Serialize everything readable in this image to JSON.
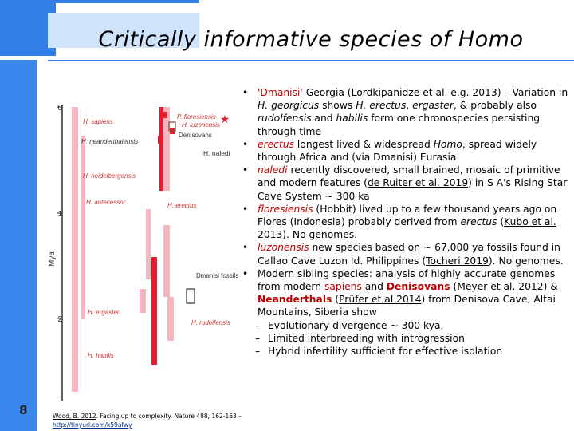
{
  "title": "Critically informative species of Homo",
  "slide_number": "8",
  "citation": {
    "author_year": "Wood, B. 2012",
    "rest": ". Facing up to complexity. Nature 488, 162-163 – ",
    "link": "http://tinyurl.com/k59afwy"
  },
  "chart": {
    "axis_label": "Mya",
    "ticks": [
      "0",
      "1",
      "2"
    ],
    "species": [
      "H. sapiens",
      "H. neanderthalensis",
      "H. heidelbergensis",
      "H. antecessor",
      "H. naledi",
      "H. erectus",
      "Dmanisi fossils",
      "H. ergaster",
      "H. habilis",
      "H. rudolfensis",
      "P. floresiensis",
      "H. luzonensis",
      "Denisovans"
    ],
    "colors": {
      "pink": "#f4b6bf",
      "red": "#e02030",
      "axis": "#333333",
      "brown": "#7a4a3a"
    }
  },
  "bullets": [
    {
      "parts": [
        {
          "t": "'Dmanisi' ",
          "c": "red"
        },
        {
          "t": "Georgia ("
        },
        {
          "t": "Lordkipanidze et al. e.g. 2013",
          "c": "u"
        },
        {
          "t": ") – Variation in "
        },
        {
          "t": "H. georgicus",
          "c": "it"
        },
        {
          "t": " shows "
        },
        {
          "t": "H. erectus",
          "c": "it"
        },
        {
          "t": ", "
        },
        {
          "t": "ergaster",
          "c": "it"
        },
        {
          "t": ", & probably also "
        },
        {
          "t": "rudolfensis",
          "c": "it"
        },
        {
          "t": " and "
        },
        {
          "t": "habilis",
          "c": "it"
        },
        {
          "t": " form one chronospecies persisting through time"
        }
      ]
    },
    {
      "parts": [
        {
          "t": "erectus",
          "c": "red it"
        },
        {
          "t": " longest lived & widespread "
        },
        {
          "t": "Homo",
          "c": "it"
        },
        {
          "t": ", spread widely through Africa and (via Dmanisi) Eurasia"
        }
      ]
    },
    {
      "parts": [
        {
          "t": "naledi",
          "c": "red it"
        },
        {
          "t": " recently discovered, small brained, mosaic of primitive and modern features ("
        },
        {
          "t": "de Ruiter et al. 2019",
          "c": "u"
        },
        {
          "t": ") in S A's Rising Star Cave System ~ 300 ka"
        }
      ]
    },
    {
      "parts": [
        {
          "t": "floresiensis",
          "c": "red it"
        },
        {
          "t": " (Hobbit) lived up to a few thousand years ago on Flores (Indonesia) probably derived from "
        },
        {
          "t": "erectus",
          "c": "it"
        },
        {
          "t": " ("
        },
        {
          "t": "Kubo et al. 2013",
          "c": "u"
        },
        {
          "t": "). No genomes."
        }
      ]
    },
    {
      "parts": [
        {
          "t": "luzonensis",
          "c": "red it"
        },
        {
          "t": " new species based on ~ 67,000 ya fossils found in Callao Cave Luzon Id. Philippines ("
        },
        {
          "t": "Tocheri 2019",
          "c": "u"
        },
        {
          "t": "). No genomes."
        }
      ]
    },
    {
      "parts": [
        {
          "t": "Modern sibling species: analysis of highly accurate genomes from modern "
        },
        {
          "t": "sapiens",
          "c": "red"
        },
        {
          "t": " and "
        },
        {
          "t": "Denisovans",
          "c": "red bold"
        },
        {
          "t": " ("
        },
        {
          "t": "Meyer et al. 2012",
          "c": "u"
        },
        {
          "t": ") & "
        },
        {
          "t": "Neanderthals",
          "c": "red bold"
        },
        {
          "t": " ("
        },
        {
          "t": "Prüfer et al 2014",
          "c": "u"
        },
        {
          "t": ") from Denisova Cave, Altai Mountains, Siberia show"
        }
      ]
    }
  ],
  "sub_bullets": [
    "Evolutionary divergence ~ 300 kya,",
    "Limited interbreeding with introgression",
    "Hybrid infertility sufficient for effective isolation"
  ]
}
